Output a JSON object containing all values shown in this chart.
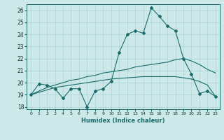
{
  "xlabel": "Humidex (Indice chaleur)",
  "background_color": "#cce8e8",
  "line_color": "#1a6b6b",
  "grid_color": "#aad4d4",
  "xlim": [
    -0.5,
    23.5
  ],
  "ylim": [
    17.8,
    26.5
  ],
  "yticks": [
    18,
    19,
    20,
    21,
    22,
    23,
    24,
    25,
    26
  ],
  "xticks": [
    0,
    1,
    2,
    3,
    4,
    5,
    6,
    7,
    8,
    9,
    10,
    11,
    12,
    13,
    14,
    15,
    16,
    17,
    18,
    19,
    20,
    21,
    22,
    23
  ],
  "line1_x": [
    0,
    1,
    2,
    3,
    4,
    5,
    6,
    7,
    8,
    9,
    10,
    11,
    12,
    13,
    14,
    15,
    16,
    17,
    18,
    19,
    20,
    21,
    22,
    23
  ],
  "line1_y": [
    19.0,
    19.9,
    19.8,
    19.5,
    18.7,
    19.5,
    19.5,
    18.0,
    19.3,
    19.5,
    20.1,
    22.5,
    24.0,
    24.3,
    24.1,
    26.2,
    25.5,
    24.7,
    24.3,
    22.0,
    20.7,
    19.1,
    19.3,
    18.85
  ],
  "line2_x": [
    0,
    1,
    2,
    3,
    4,
    5,
    6,
    7,
    8,
    9,
    10,
    11,
    12,
    13,
    14,
    15,
    16,
    17,
    18,
    19,
    20,
    21,
    22,
    23
  ],
  "line2_y": [
    19.0,
    19.3,
    19.6,
    19.8,
    20.0,
    20.2,
    20.3,
    20.5,
    20.6,
    20.8,
    20.9,
    21.0,
    21.1,
    21.3,
    21.4,
    21.5,
    21.6,
    21.7,
    21.9,
    22.0,
    21.8,
    21.5,
    21.1,
    20.8
  ],
  "line3_x": [
    0,
    1,
    2,
    3,
    4,
    5,
    6,
    7,
    8,
    9,
    10,
    11,
    12,
    13,
    14,
    15,
    16,
    17,
    18,
    19,
    20,
    21,
    22,
    23
  ],
  "line3_y": [
    19.0,
    19.2,
    19.4,
    19.6,
    19.7,
    19.8,
    19.9,
    20.0,
    20.1,
    20.2,
    20.3,
    20.35,
    20.4,
    20.45,
    20.5,
    20.5,
    20.5,
    20.5,
    20.5,
    20.4,
    20.3,
    20.1,
    19.8,
    18.85
  ]
}
